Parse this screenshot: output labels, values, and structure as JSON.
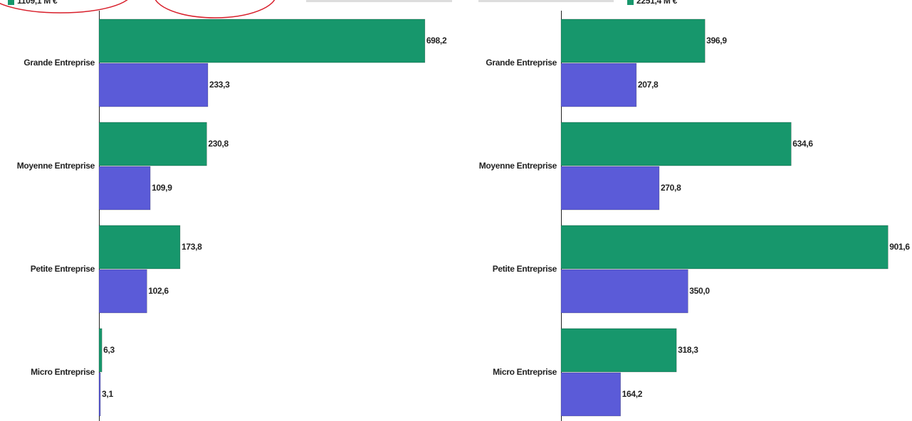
{
  "chart_data": [
    {
      "type": "bar",
      "orientation": "horizontal",
      "categories": [
        "Grande Entreprise",
        "Moyenne Entreprise",
        "Petite Entreprise",
        "Micro Entreprise"
      ],
      "series": [
        {
          "name": "1109,1 M €",
          "color": "#17976c",
          "values": [
            698.2,
            230.8,
            173.8,
            6.3
          ],
          "value_labels": [
            "698,2",
            "230,8",
            "173,8",
            "6,3"
          ]
        },
        {
          "color": "#5b5bd8",
          "values": [
            233.3,
            109.9,
            102.6,
            3.1
          ],
          "value_labels": [
            "233,3",
            "109,9",
            "102,6",
            "3,1"
          ]
        }
      ],
      "xlim": [
        0,
        700
      ]
    },
    {
      "type": "bar",
      "orientation": "horizontal",
      "categories": [
        "Grande Entreprise",
        "Moyenne Entreprise",
        "Petite Entreprise",
        "Micro Entreprise"
      ],
      "series": [
        {
          "name": "2251,4 M €",
          "color": "#17976c",
          "values": [
            396.9,
            634.6,
            901.6,
            318.3
          ],
          "value_labels": [
            "396,9",
            "634,6",
            "901,6",
            "318,3"
          ]
        },
        {
          "color": "#5b5bd8",
          "values": [
            207.8,
            270.8,
            350.0,
            164.2
          ],
          "value_labels": [
            "207,8",
            "270,8",
            "350,0",
            "164,2"
          ]
        }
      ],
      "xlim": [
        0,
        905
      ]
    }
  ]
}
